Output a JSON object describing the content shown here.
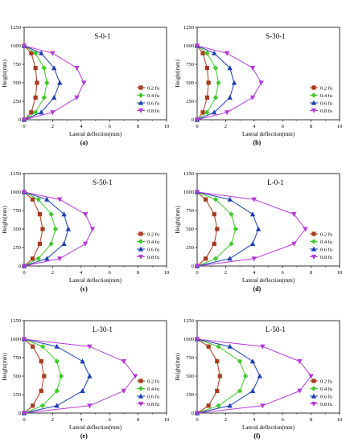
{
  "colors": {
    "s02": "#a83a1e",
    "s04": "#3fc92a",
    "s06": "#1a3fb0",
    "s08": "#b53ad6",
    "axis": "#000000"
  },
  "chart_data": [
    {
      "type": "line",
      "title": "S-0-1",
      "panel_label": "(a)",
      "xlabel": "Lateral deflection(mm)",
      "ylabel": "Height(mm)",
      "xlim": [
        0,
        10
      ],
      "ylim": [
        0,
        1250
      ],
      "xticks": [
        "0",
        "2",
        "4",
        "6",
        "8",
        "10"
      ],
      "yticks": [
        "0",
        "250",
        "500",
        "750",
        "1000",
        "1250"
      ],
      "legend": "bottom-right",
      "y": [
        0,
        100,
        300,
        500,
        700,
        900,
        1000
      ],
      "series": [
        {
          "name": "0.2 fu",
          "x": [
            0,
            0.5,
            0.8,
            0.9,
            0.8,
            0.5,
            0
          ]
        },
        {
          "name": "0.4 fu",
          "x": [
            0,
            0.8,
            1.4,
            1.6,
            1.4,
            0.8,
            0
          ]
        },
        {
          "name": "0.6 fu",
          "x": [
            0,
            1.2,
            2.1,
            2.5,
            2.1,
            1.2,
            0
          ]
        },
        {
          "name": "0.8 fu",
          "x": [
            0,
            2.0,
            3.7,
            4.2,
            3.7,
            2.0,
            0
          ]
        }
      ]
    },
    {
      "type": "line",
      "title": "S-30-1",
      "panel_label": "(b)",
      "xlabel": "Lateral deflection(mm)",
      "ylabel": "Height(mm)",
      "xlim": [
        0,
        10
      ],
      "ylim": [
        0,
        1250
      ],
      "xticks": [
        "0",
        "2",
        "4",
        "6",
        "8",
        "10"
      ],
      "yticks": [
        "0",
        "250",
        "500",
        "750",
        "1000",
        "1250"
      ],
      "legend": "bottom-right",
      "y": [
        0,
        100,
        300,
        500,
        700,
        900,
        1000
      ],
      "series": [
        {
          "name": "0.2 fu",
          "x": [
            0,
            0.4,
            0.7,
            0.8,
            0.7,
            0.4,
            0
          ]
        },
        {
          "name": "0.4 fu",
          "x": [
            0,
            0.7,
            1.3,
            1.5,
            1.3,
            0.7,
            0
          ]
        },
        {
          "name": "0.6 fu",
          "x": [
            0,
            1.2,
            2.3,
            2.6,
            2.3,
            1.2,
            0
          ]
        },
        {
          "name": "0.8 fu",
          "x": [
            0,
            2.1,
            3.9,
            4.5,
            3.9,
            2.1,
            0
          ]
        }
      ]
    },
    {
      "type": "line",
      "title": "S-50-1",
      "panel_label": "(c)",
      "xlabel": "Lateral deflection(mm)",
      "ylabel": "Height(mm)",
      "xlim": [
        0,
        10
      ],
      "ylim": [
        0,
        1250
      ],
      "xticks": [
        "0",
        "2",
        "4",
        "6",
        "8",
        "10"
      ],
      "yticks": [
        "0",
        "250",
        "500",
        "750",
        "1000",
        "1250"
      ],
      "legend": "bottom-right",
      "y": [
        0,
        100,
        300,
        500,
        700,
        900,
        1000
      ],
      "series": [
        {
          "name": "0.2 fu",
          "x": [
            0,
            0.6,
            1.1,
            1.3,
            1.1,
            0.6,
            0
          ]
        },
        {
          "name": "0.4 fu",
          "x": [
            0,
            1.0,
            1.9,
            2.2,
            1.9,
            1.0,
            0
          ]
        },
        {
          "name": "0.6 fu",
          "x": [
            0,
            1.6,
            2.8,
            3.1,
            2.8,
            1.6,
            0
          ]
        },
        {
          "name": "0.8 fu",
          "x": [
            0,
            2.5,
            4.3,
            4.8,
            4.3,
            2.5,
            0
          ]
        }
      ]
    },
    {
      "type": "line",
      "title": "L-0-1",
      "panel_label": "(d)",
      "xlabel": "Lateral deflection(mm)",
      "ylabel": "Height(mm)",
      "xlim": [
        0,
        10
      ],
      "ylim": [
        0,
        1250
      ],
      "xticks": [
        "0",
        "2",
        "4",
        "6",
        "8",
        "10"
      ],
      "yticks": [
        "0",
        "250",
        "500",
        "750",
        "1000",
        "1250"
      ],
      "legend": "bottom-right",
      "y": [
        0,
        100,
        300,
        500,
        700,
        900,
        1000
      ],
      "series": [
        {
          "name": "0.2 fu",
          "x": [
            0,
            0.6,
            1.2,
            1.4,
            1.2,
            0.6,
            0
          ]
        },
        {
          "name": "0.4 fu",
          "x": [
            0,
            1.3,
            2.4,
            2.7,
            2.4,
            1.3,
            0
          ]
        },
        {
          "name": "0.6 fu",
          "x": [
            0,
            2.3,
            3.9,
            4.3,
            3.9,
            2.3,
            0
          ]
        },
        {
          "name": "0.8 fu",
          "x": [
            0,
            4.0,
            6.8,
            7.6,
            6.8,
            4.0,
            0
          ]
        }
      ]
    },
    {
      "type": "line",
      "title": "L-30-1",
      "panel_label": "(e)",
      "xlabel": "Lateral deflection(mm)",
      "ylabel": "Height(mm)",
      "xlim": [
        0,
        10
      ],
      "ylim": [
        0,
        1250
      ],
      "xticks": [
        "0",
        "2",
        "4",
        "6",
        "8",
        "10"
      ],
      "yticks": [
        "0",
        "250",
        "500",
        "750",
        "1000",
        "1250"
      ],
      "legend": "bottom-right",
      "y": [
        0,
        100,
        300,
        500,
        700,
        900,
        1000
      ],
      "series": [
        {
          "name": "0.2 fu",
          "x": [
            0,
            0.6,
            1.2,
            1.4,
            1.2,
            0.6,
            0
          ]
        },
        {
          "name": "0.4 fu",
          "x": [
            0,
            1.3,
            2.3,
            2.6,
            2.3,
            1.3,
            0
          ]
        },
        {
          "name": "0.6 fu",
          "x": [
            0,
            2.3,
            4.1,
            4.6,
            4.1,
            2.3,
            0
          ]
        },
        {
          "name": "0.8 fu",
          "x": [
            0,
            4.6,
            7.0,
            7.8,
            7.0,
            4.6,
            0
          ]
        }
      ]
    },
    {
      "type": "line",
      "title": "L-50-1",
      "panel_label": "(f)",
      "xlabel": "Lateral deflection(mm)",
      "ylabel": "Height(mm)",
      "xlim": [
        0,
        10
      ],
      "ylim": [
        0,
        1250
      ],
      "xticks": [
        "0",
        "2",
        "4",
        "6",
        "8",
        "10"
      ],
      "yticks": [
        "0",
        "250",
        "500",
        "750",
        "1000",
        "1250"
      ],
      "legend": "bottom-right",
      "y": [
        0,
        100,
        300,
        500,
        700,
        900,
        1000
      ],
      "series": [
        {
          "name": "0.2 fu",
          "x": [
            0,
            0.8,
            1.4,
            1.6,
            1.4,
            0.8,
            0
          ]
        },
        {
          "name": "0.4 fu",
          "x": [
            0,
            1.5,
            3.0,
            3.4,
            3.0,
            1.5,
            0
          ]
        },
        {
          "name": "0.6 fu",
          "x": [
            0,
            2.3,
            3.9,
            4.4,
            3.9,
            2.3,
            0
          ]
        },
        {
          "name": "0.8 fu",
          "x": [
            0,
            4.6,
            7.2,
            8.0,
            7.2,
            4.6,
            0
          ]
        }
      ]
    }
  ]
}
